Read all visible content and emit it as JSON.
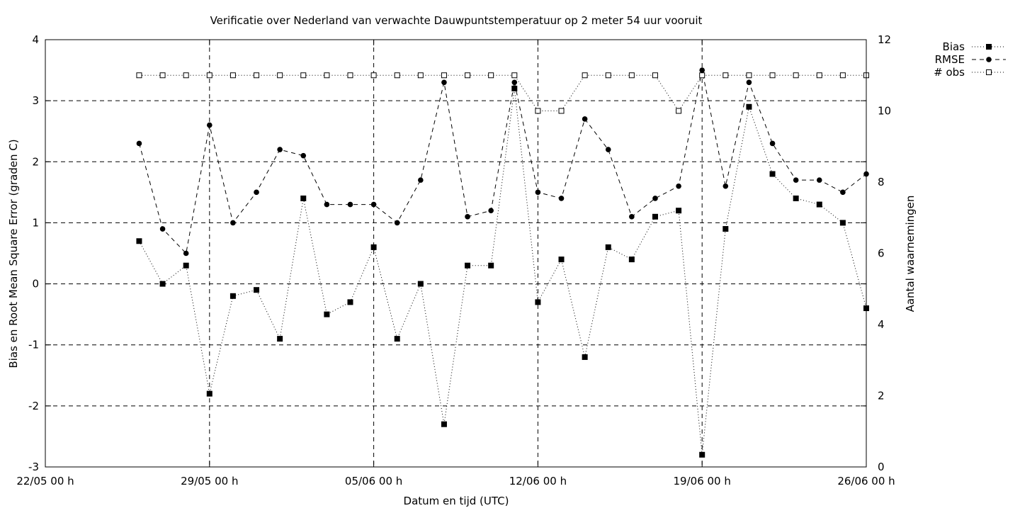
{
  "chart_data": {
    "type": "line",
    "title": "Verificatie over Nederland van verwachte Dauwpuntstemperatuur op 2 meter 54 uur vooruit",
    "xlabel": "Datum en tijd (UTC)",
    "ylabel": "Bias en Root Mean Square Error (graden C)",
    "y2label": "Aantal waarnemingen",
    "x_ticks": [
      "22/05 00 h",
      "29/05 00 h",
      "05/06 00 h",
      "12/06 00 h",
      "19/06 00 h",
      "26/06 00 h"
    ],
    "x_range": [
      "22/05 00 h",
      "26/06 00 h"
    ],
    "ylim": [
      -3,
      4
    ],
    "y_ticks": [
      "-3",
      "-2",
      "-1",
      "0",
      "1",
      "2",
      "3",
      "4"
    ],
    "y2lim": [
      0,
      12
    ],
    "y2_ticks": [
      "0",
      "2",
      "4",
      "6",
      "8",
      "10",
      "12"
    ],
    "grid": true,
    "legend_position": "top-right, outside plot",
    "x_dates": [
      "26/05",
      "27/05",
      "28/05",
      "29/05",
      "30/05",
      "31/05",
      "01/06",
      "02/06",
      "03/06",
      "04/06",
      "05/06",
      "06/06",
      "07/06",
      "08/06",
      "09/06",
      "10/06",
      "11/06",
      "12/06",
      "13/06",
      "14/06",
      "15/06",
      "16/06",
      "17/06",
      "18/06",
      "19/06",
      "20/06",
      "21/06",
      "22/06",
      "23/06",
      "24/06",
      "25/06",
      "26/06"
    ],
    "series": [
      {
        "name": "Bias",
        "axis": "left",
        "style": "dotted line, filled square markers",
        "values": [
          0.7,
          0.0,
          0.3,
          -1.8,
          -0.2,
          -0.1,
          -0.9,
          1.4,
          -0.5,
          -0.3,
          0.6,
          -0.9,
          0.0,
          -2.3,
          0.3,
          0.3,
          3.2,
          -0.3,
          0.4,
          -1.2,
          0.6,
          0.4,
          1.1,
          1.2,
          -2.8,
          0.9,
          2.9,
          1.8,
          1.4,
          1.3,
          1.0,
          -0.4
        ]
      },
      {
        "name": "RMSE",
        "axis": "left",
        "style": "dashed line, filled circle markers",
        "values": [
          2.3,
          0.9,
          0.5,
          2.6,
          1.0,
          1.5,
          2.2,
          2.1,
          1.3,
          1.3,
          1.3,
          1.0,
          1.7,
          3.3,
          1.1,
          1.2,
          3.3,
          1.5,
          1.4,
          2.7,
          2.2,
          1.1,
          1.4,
          1.6,
          3.5,
          1.6,
          3.3,
          2.3,
          1.7,
          1.7,
          1.5,
          1.8
        ]
      },
      {
        "name": "# obs",
        "axis": "right",
        "style": "dotted line, open square markers",
        "values": [
          11,
          11,
          11,
          11,
          11,
          11,
          11,
          11,
          11,
          11,
          11,
          11,
          11,
          11,
          11,
          11,
          11,
          10,
          10,
          11,
          11,
          11,
          11,
          10,
          11,
          11,
          11,
          11,
          11,
          11,
          11,
          11
        ]
      }
    ]
  }
}
